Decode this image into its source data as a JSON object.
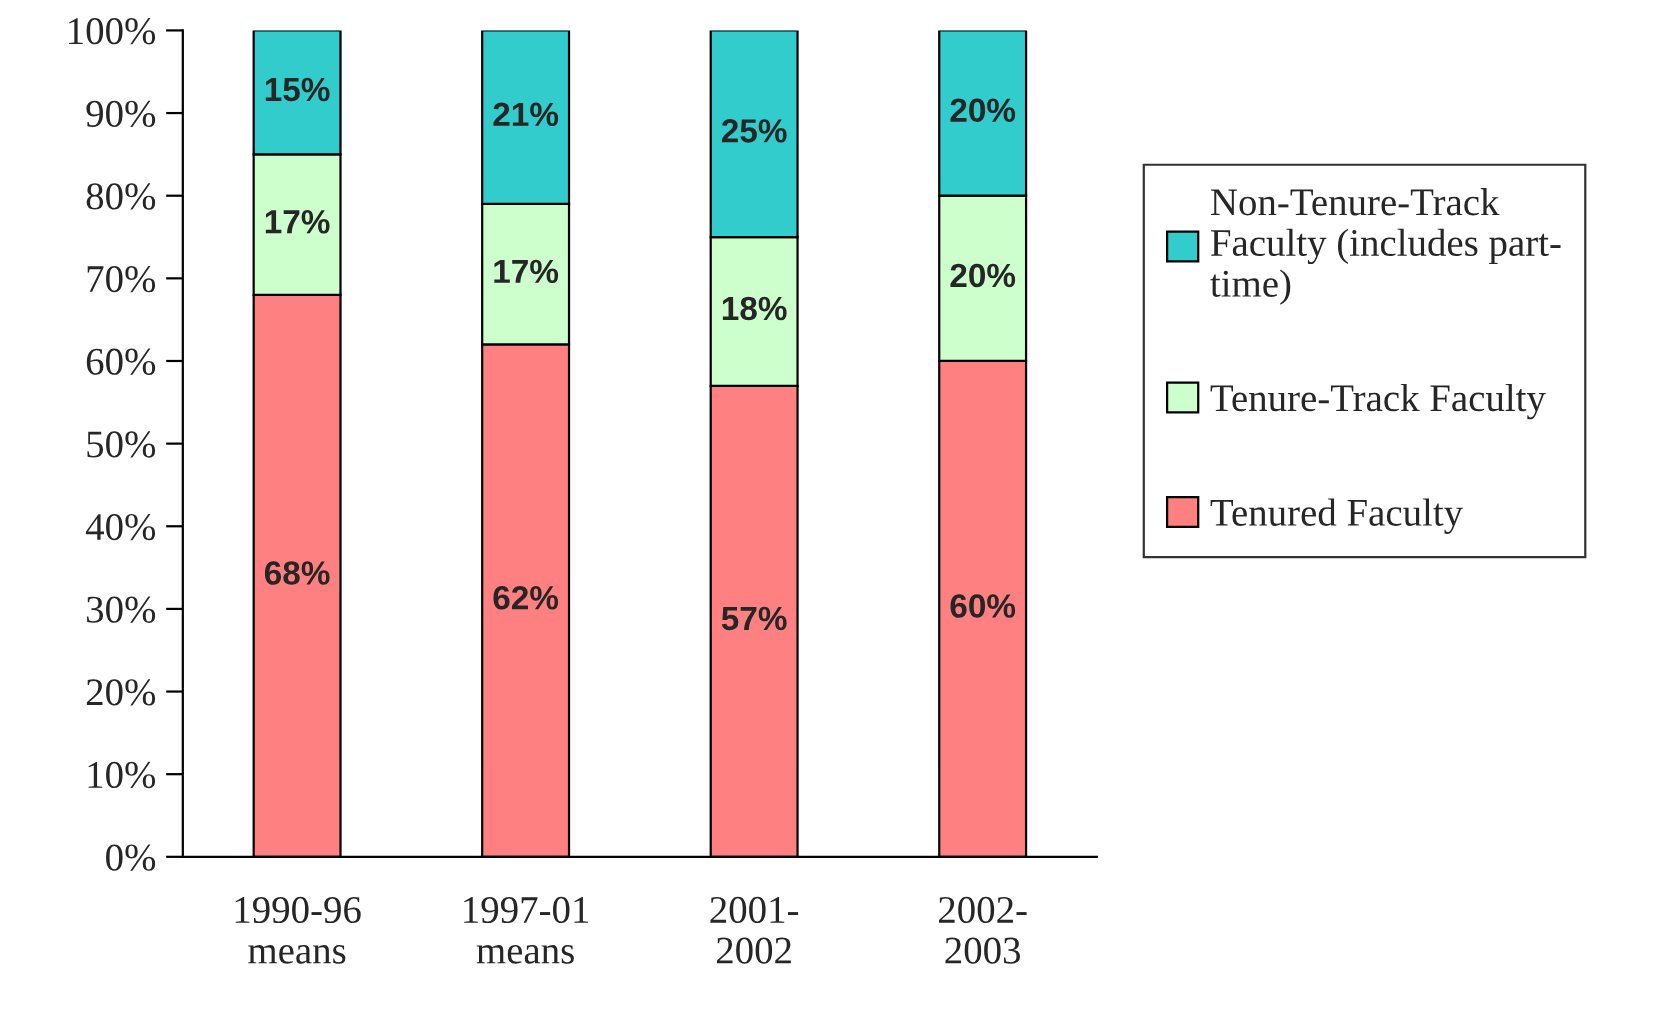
{
  "chart_data": {
    "type": "bar",
    "stacked": true,
    "categories": [
      "1990-96\nmeans",
      "1997-01\nmeans",
      "2001-\n2002",
      "2002-\n2003"
    ],
    "series": [
      {
        "name": "Tenured Faculty",
        "color": "#ff8080",
        "values": [
          68,
          62,
          57,
          60
        ],
        "value_labels": [
          "68%",
          "62%",
          "57%",
          "60%"
        ]
      },
      {
        "name": "Tenure-Track Faculty",
        "color": "#ccffcc",
        "values": [
          17,
          17,
          18,
          20
        ],
        "value_labels": [
          "17%",
          "17%",
          "18%",
          "20%"
        ]
      },
      {
        "name": "Non-Tenure-Track\nFaculty (includes part-\ntime)",
        "color": "#33cccc",
        "values": [
          15,
          21,
          25,
          20
        ],
        "value_labels": [
          "15%",
          "21%",
          "25%",
          "20%"
        ]
      }
    ],
    "ylim": [
      0,
      100
    ],
    "yticks": [
      {
        "value": 0,
        "label": "0%"
      },
      {
        "value": 10,
        "label": "10%"
      },
      {
        "value": 20,
        "label": "20%"
      },
      {
        "value": 30,
        "label": "30%"
      },
      {
        "value": 40,
        "label": "40%"
      },
      {
        "value": 50,
        "label": "50%"
      },
      {
        "value": 60,
        "label": "60%"
      },
      {
        "value": 70,
        "label": "70%"
      },
      {
        "value": 80,
        "label": "80%"
      },
      {
        "value": 90,
        "label": "90%"
      },
      {
        "value": 100,
        "label": "100%"
      }
    ],
    "grid": false,
    "legend": "right"
  }
}
